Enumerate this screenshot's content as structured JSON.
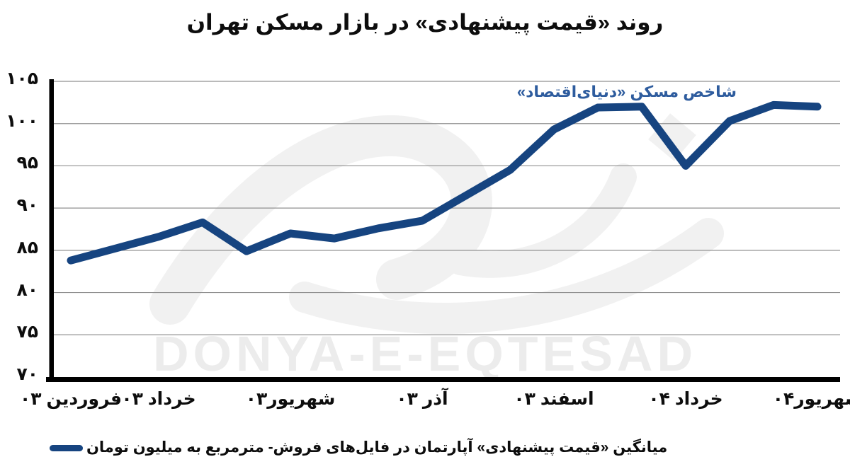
{
  "title": "روند «قیمت پیشنهادی» در بازار مسکن تهران",
  "annotation": "شاخص مسکن «دنیای‌اقتصاد»",
  "watermark": {
    "latin": "DONYA-E-EQTESAD"
  },
  "legend": {
    "label": "میانگین «قیمت پیشنهادی» آپارتمان در فایل‌های فروش- مترمربع به میلیون تومان"
  },
  "colors": {
    "line": "#164480",
    "annotation": "#2e5c9e",
    "grid": "#909090",
    "axis": "#000000",
    "watermark": "#ececec",
    "watermark_shapes": "#f1f1f1",
    "text": "#0d0d0d"
  },
  "chart_data": {
    "type": "line",
    "title": "روند «قیمت پیشنهادی» در بازار مسکن تهران",
    "xlabel": "",
    "ylabel": "",
    "ylim": [
      70,
      105
    ],
    "grid": "horizontal",
    "legend_position": "bottom-left",
    "months_count": 18,
    "x_tick_labels": [
      "فروردین ۰۳",
      "خرداد ۰۳",
      "شهریور۰۳",
      "آذر ۰۳",
      "اسفند ۰۳",
      "خرداد ۰۴",
      "شهریور۰۴"
    ],
    "x_tick_index": [
      0,
      2,
      5,
      8,
      11,
      14,
      17
    ],
    "y_ticks": [
      70,
      75,
      80,
      85,
      90,
      95,
      100,
      105
    ],
    "y_tick_labels": [
      "۷۰",
      "۷۵",
      "۸۰",
      "۸۵",
      "۹۰",
      "۹۵",
      "۱۰۰",
      "۱۰۵"
    ],
    "series": [
      {
        "name": "میانگین «قیمت پیشنهادی» آپارتمان در فایل‌های فروش- مترمربع به میلیون تومان",
        "color": "#164480",
        "values": [
          83.8,
          85.2,
          86.6,
          88.3,
          84.9,
          87.0,
          86.4,
          87.6,
          88.5,
          91.5,
          94.5,
          99.3,
          101.9,
          102.0,
          95.0,
          100.3,
          102.2,
          102.0
        ]
      }
    ],
    "annotation": "شاخص مسکن «دنیای‌اقتصاد»"
  }
}
